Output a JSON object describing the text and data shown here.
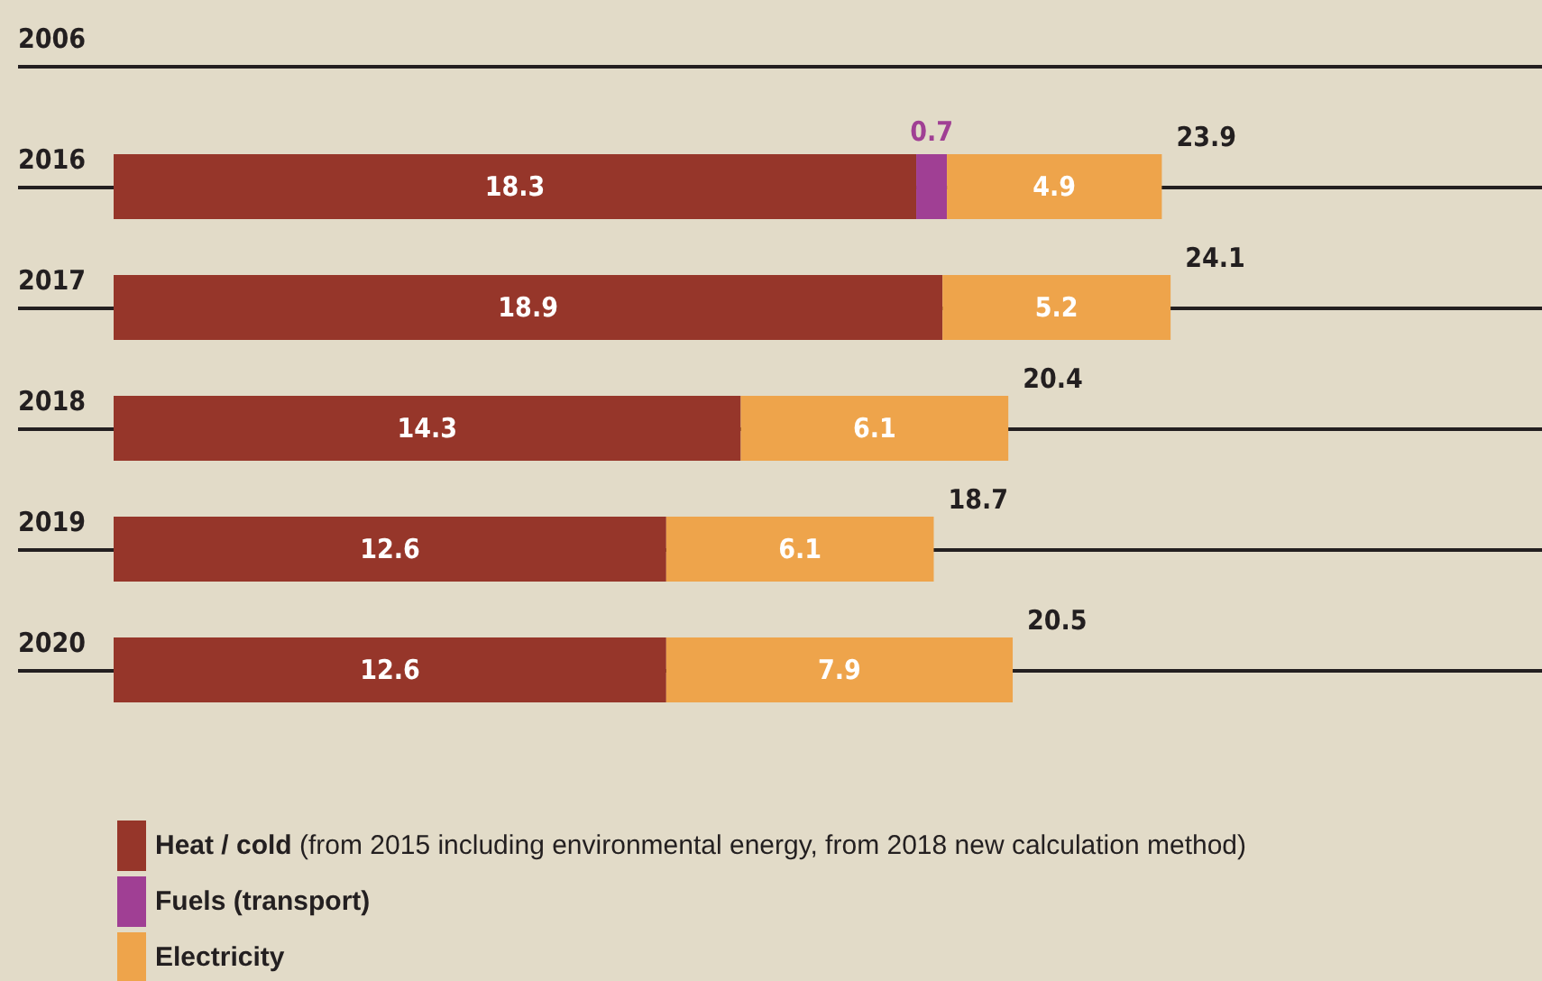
{
  "chart_data": {
    "type": "bar",
    "orientation": "horizontal",
    "stacked": true,
    "data_labels": true,
    "legend": "bottom left",
    "categories": [
      "2006",
      "2016",
      "2017",
      "2018",
      "2019",
      "2020"
    ],
    "series": [
      {
        "name": "Heat / cold (from 2015 including environmental energy, from 2018 new calculation method)",
        "color": "#96362a",
        "values": [
          null,
          18.3,
          18.9,
          14.3,
          12.6,
          12.6
        ]
      },
      {
        "name": "Fuels (transport)",
        "color": "#a03f94",
        "values": [
          null,
          0.7,
          null,
          null,
          null,
          null
        ]
      },
      {
        "name": "Electricity",
        "color": "#eea44b",
        "values": [
          null,
          4.9,
          5.2,
          6.1,
          6.1,
          7.9
        ]
      }
    ],
    "totals": [
      null,
      "23.9",
      "24.1",
      "20.4",
      "18.7",
      "20.5"
    ]
  }
}
